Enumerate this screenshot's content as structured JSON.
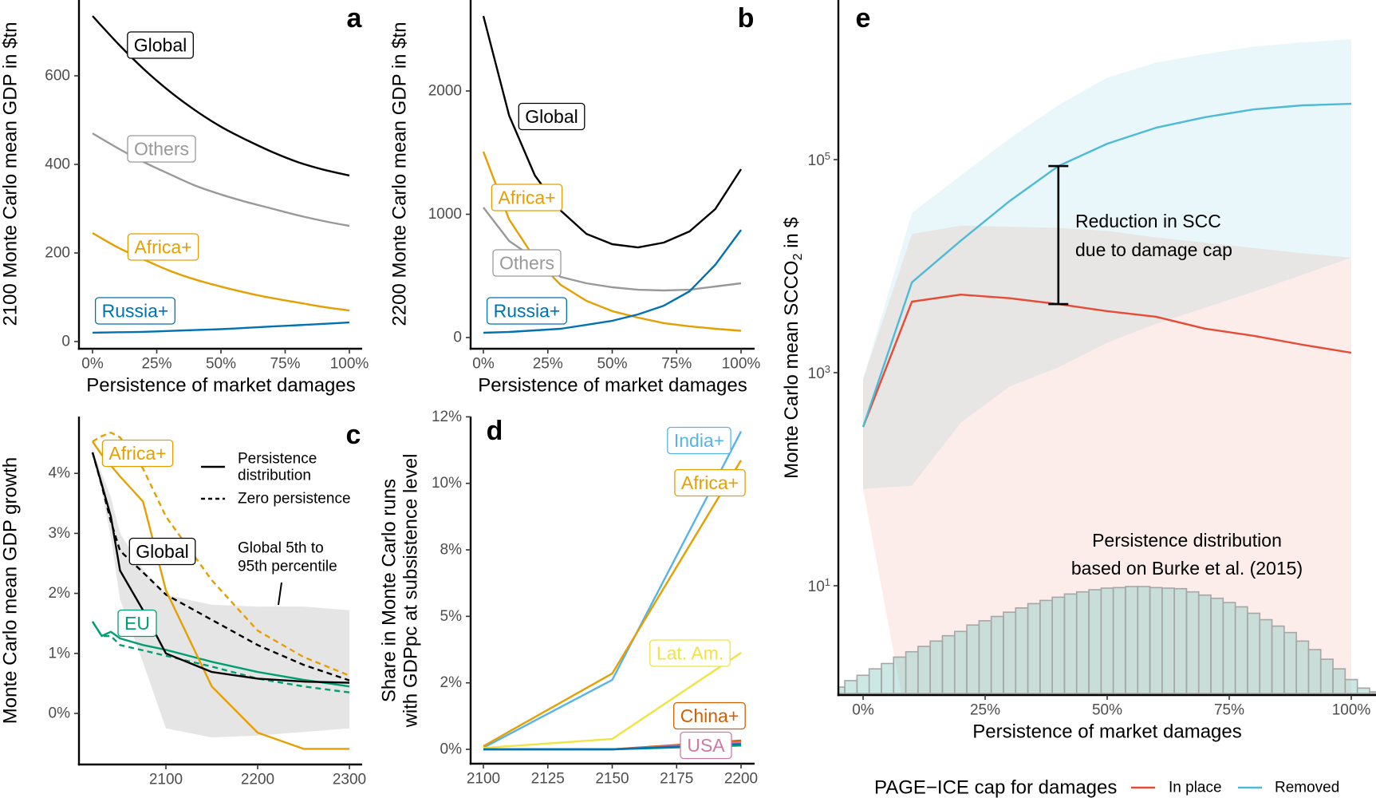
{
  "figure": {
    "panel_letters": [
      "a",
      "b",
      "c",
      "d",
      "e"
    ]
  },
  "chart_data": [
    {
      "panel": "a",
      "type": "line",
      "title": "",
      "xlabel": "Persistence of market damages",
      "ylabel": "2100 Monte Carlo mean GDP in $tn",
      "x": [
        0,
        10,
        20,
        30,
        40,
        50,
        60,
        70,
        80,
        90,
        100
      ],
      "xlim": [
        -5,
        105
      ],
      "ylim": [
        -16,
        771
      ],
      "x_ticks": [
        0,
        25,
        50,
        75,
        100
      ],
      "x_tick_labels": [
        "0%",
        "25%",
        "50%",
        "75%",
        "100%"
      ],
      "y_ticks": [
        0,
        200,
        400,
        600
      ],
      "y_tick_labels": [
        "0",
        "200",
        "400",
        "600"
      ],
      "grid": false,
      "legend": "direct labels",
      "series": [
        {
          "name": "Global",
          "color": "#000000",
          "values": [
            735,
            672,
            615,
            565,
            522,
            485,
            455,
            428,
            405,
            388,
            375
          ]
        },
        {
          "name": "Others",
          "color": "#999999",
          "values": [
            470,
            436,
            405,
            378,
            352,
            332,
            315,
            300,
            285,
            272,
            261
          ]
        },
        {
          "name": "Africa+",
          "color": "#E69F00",
          "values": [
            245,
            212,
            185,
            160,
            140,
            124,
            110,
            98,
            88,
            78,
            70
          ]
        },
        {
          "name": "Russia+",
          "color": "#0072B2",
          "values": [
            20,
            21,
            22,
            24,
            26,
            28,
            31,
            34,
            37,
            40,
            43
          ]
        }
      ]
    },
    {
      "panel": "b",
      "type": "line",
      "title": "",
      "xlabel": "Persistence of market damages",
      "ylabel": "2200 Monte Carlo mean GDP in $tn",
      "x": [
        0,
        10,
        20,
        30,
        40,
        50,
        60,
        70,
        80,
        90,
        100
      ],
      "xlim": [
        -5,
        105
      ],
      "ylim": [
        -91,
        2738
      ],
      "x_ticks": [
        0,
        25,
        50,
        75,
        100
      ],
      "x_tick_labels": [
        "0%",
        "25%",
        "50%",
        "75%",
        "100%"
      ],
      "y_ticks": [
        0,
        1000,
        2000
      ],
      "y_tick_labels": [
        "0",
        "1000",
        "2000"
      ],
      "grid": false,
      "legend": "direct labels",
      "series": [
        {
          "name": "Global",
          "color": "#000000",
          "values": [
            2608,
            1800,
            1314,
            1030,
            841,
            757,
            731,
            770,
            861,
            1042,
            1366
          ]
        },
        {
          "name": "Africa+",
          "color": "#E69F00",
          "values": [
            1508,
            958,
            640,
            427,
            298,
            214,
            162,
            117,
            91,
            71,
            55
          ]
        },
        {
          "name": "Others",
          "color": "#999999",
          "values": [
            1055,
            783,
            640,
            492,
            440,
            408,
            388,
            382,
            388,
            414,
            440
          ]
        },
        {
          "name": "Russia+",
          "color": "#0072B2",
          "values": [
            39,
            45,
            58,
            71,
            103,
            136,
            188,
            258,
            375,
            590,
            873
          ]
        }
      ]
    },
    {
      "panel": "c",
      "type": "line",
      "title": "",
      "xlabel": "",
      "ylabel": "Monte Carlo mean GDP growth",
      "x": [
        2020,
        2030,
        2040,
        2050,
        2075,
        2100,
        2150,
        2200,
        2250,
        2300
      ],
      "xlim": [
        2006,
        2314
      ],
      "ylim": [
        -0.85,
        4.95
      ],
      "y_unit": "percent",
      "x_ticks": [
        2100,
        2200,
        2300
      ],
      "x_tick_labels": [
        "2100",
        "2200",
        "2300"
      ],
      "y_ticks": [
        0,
        1,
        2,
        3,
        4
      ],
      "y_tick_labels": [
        "0%",
        "1%",
        "2%",
        "3%",
        "4%"
      ],
      "grid": false,
      "series": [
        {
          "name": "Global",
          "color": "#000000",
          "persistence_distribution": [
            4.35,
            3.82,
            3.28,
            2.38,
            1.72,
            1.0,
            0.69,
            0.58,
            0.53,
            0.51
          ],
          "zero_persistence": [
            4.35,
            3.8,
            3.2,
            2.71,
            2.35,
            1.98,
            1.56,
            1.14,
            0.81,
            0.55
          ]
        },
        {
          "name": "Africa+",
          "color": "#E69F00",
          "persistence_distribution": [
            4.53,
            4.31,
            4.13,
            3.95,
            3.53,
            2.05,
            0.45,
            -0.32,
            -0.59,
            -0.59
          ],
          "zero_persistence": [
            4.53,
            4.62,
            4.68,
            4.6,
            4.08,
            3.28,
            2.22,
            1.38,
            0.94,
            0.63
          ]
        },
        {
          "name": "EU",
          "color": "#009E73",
          "persistence_distribution": [
            1.53,
            1.29,
            1.36,
            1.25,
            1.14,
            1.06,
            0.86,
            0.69,
            0.56,
            0.45
          ],
          "zero_persistence": [
            1.53,
            1.29,
            1.29,
            1.14,
            1.05,
            0.96,
            0.78,
            0.58,
            0.45,
            0.35
          ]
        }
      ],
      "band": {
        "label_lines": [
          "Global 5th to",
          "95th percentile"
        ],
        "color": "#e5e5e5",
        "lower": [
          4.35,
          3.7,
          2.94,
          1.9,
          0.85,
          -0.25,
          -0.4,
          -0.37,
          -0.31,
          -0.25
        ],
        "upper": [
          4.4,
          4.0,
          3.6,
          3.0,
          2.4,
          1.98,
          1.81,
          1.78,
          1.78,
          1.72
        ]
      },
      "legend": {
        "position": "top-right",
        "entries": [
          {
            "label_lines": [
              "Persistence",
              "distribution"
            ],
            "linetype": "solid"
          },
          {
            "label_lines": [
              "Zero persistence"
            ],
            "linetype": "dashed"
          }
        ]
      }
    },
    {
      "panel": "d",
      "type": "line",
      "title": "",
      "xlabel": "",
      "ylabel_lines": [
        "Share in Monte Carlo runs",
        "with GDPpc at subsistence level"
      ],
      "x": [
        2100,
        2150,
        2200
      ],
      "xlim": [
        2095,
        2205
      ],
      "ylim": [
        -0.54,
        12.5
      ],
      "y_unit": "percent",
      "x_ticks": [
        2100,
        2125,
        2150,
        2175,
        2200
      ],
      "x_tick_labels": [
        "2100",
        "2125",
        "2150",
        "2175",
        "2200"
      ],
      "y_ticks": [
        0,
        2.5,
        5,
        7.5,
        10,
        12.5
      ],
      "y_tick_labels": [
        "0%",
        "2%",
        "5%",
        "8%",
        "10%",
        "12%"
      ],
      "grid": false,
      "legend": "direct labels",
      "series": [
        {
          "name": "India+",
          "color": "#56B4E9",
          "values": [
            0.06,
            2.61,
            11.95
          ]
        },
        {
          "name": "Africa+",
          "color": "#E69F00",
          "values": [
            0.12,
            2.85,
            10.87
          ]
        },
        {
          "name": "Lat. Am.",
          "color": "#F0E442",
          "values": [
            0.05,
            0.39,
            3.63
          ]
        },
        {
          "name": "China+",
          "color": "#D55E00",
          "values": [
            0,
            0,
            0.33
          ]
        },
        {
          "name": "USA",
          "color": "#CC79A7",
          "values": [
            0,
            0,
            0.26
          ]
        },
        {
          "name": null,
          "color": "#009E73",
          "values": [
            0,
            0,
            0.14
          ]
        },
        {
          "name": null,
          "color": "#0072B2",
          "values": [
            0,
            0,
            0.2
          ]
        }
      ]
    },
    {
      "panel": "e",
      "type": "line",
      "title": "",
      "xlabel": "Persistence of market damages",
      "ylabel_parts": [
        "Monte Carlo mean SCCO",
        "2",
        " in $"
      ],
      "yscale": "log10",
      "x": [
        0,
        10,
        20,
        30,
        40,
        50,
        60,
        70,
        80,
        90,
        100
      ],
      "xlim": [
        -5,
        105
      ],
      "ylim": [
        0.94,
        3200000
      ],
      "x_ticks": [
        0,
        25,
        50,
        75,
        100
      ],
      "x_tick_labels": [
        "0%",
        "25%",
        "50%",
        "75%",
        "100%"
      ],
      "y_ticks": [
        10,
        1000,
        100000
      ],
      "y_tick_labels": [
        {
          "base": "10",
          "exp": "1"
        },
        {
          "base": "10",
          "exp": "3"
        },
        {
          "base": "10",
          "exp": "5"
        }
      ],
      "grid": false,
      "series": [
        {
          "name": "In place",
          "color": "#E64B35",
          "values": [
            309,
            4640,
            5400,
            5000,
            4400,
            3780,
            3350,
            2590,
            2220,
            1830,
            1540
          ],
          "band_5th": [
            81,
            null,
            null,
            null,
            null,
            null,
            null,
            null,
            null,
            null,
            null
          ],
          "band_95th": [
            871,
            20000,
            24000,
            23400,
            22900,
            21400,
            18600,
            16600,
            14800,
            13200,
            12000
          ]
        },
        {
          "name": "Removed",
          "color": "#4DBBD5",
          "values": [
            309,
            7040,
            17300,
            40800,
            87000,
            141000,
            199000,
            250000,
            296000,
            323000,
            334000
          ],
          "band_5th": [
            81,
            87,
            339,
            741,
            1120,
            1910,
            2880,
            4070,
            5750,
            8320,
            12000
          ],
          "band_95th": [
            871,
            31600,
            70800,
            158000,
            324000,
            589000,
            813000,
            977000,
            1150000,
            1260000,
            1350000
          ]
        }
      ],
      "legend": {
        "title": "PAGE−ICE cap for damages",
        "position": "bottom"
      },
      "annotations": [
        {
          "type": "errorbar",
          "label_lines": [
            "Reduction in SCC",
            "due to damage cap"
          ],
          "x": 40,
          "y_from": 4400,
          "y_to": 87000
        },
        {
          "type": "text",
          "label_lines": [
            "Persistence distribution",
            "based on Burke et al. (2015)"
          ]
        }
      ],
      "histogram": {
        "label": "Persistence distribution",
        "bin_width": 2.5,
        "bin_centers": [
          -5,
          -2.5,
          0,
          2.5,
          5,
          7.5,
          10,
          12.5,
          15,
          17.5,
          20,
          22.5,
          25,
          27.5,
          30,
          32.5,
          35,
          37.5,
          40,
          42.5,
          45,
          47.5,
          50,
          52.5,
          55,
          57.5,
          60,
          62.5,
          65,
          67.5,
          70,
          72.5,
          75,
          77.5,
          80,
          82.5,
          85,
          87.5,
          90,
          92.5,
          95,
          97.5,
          100,
          102.5,
          105
        ],
        "relative_height": [
          0.06,
          0.12,
          0.17,
          0.23,
          0.28,
          0.34,
          0.39,
          0.44,
          0.49,
          0.54,
          0.58,
          0.64,
          0.68,
          0.72,
          0.76,
          0.8,
          0.84,
          0.87,
          0.9,
          0.93,
          0.95,
          0.97,
          0.985,
          0.99,
          1.0,
          1.0,
          0.99,
          0.985,
          0.98,
          0.95,
          0.92,
          0.89,
          0.85,
          0.81,
          0.75,
          0.69,
          0.63,
          0.57,
          0.49,
          0.41,
          0.32,
          0.23,
          0.13,
          0.05,
          0.015
        ]
      }
    }
  ]
}
